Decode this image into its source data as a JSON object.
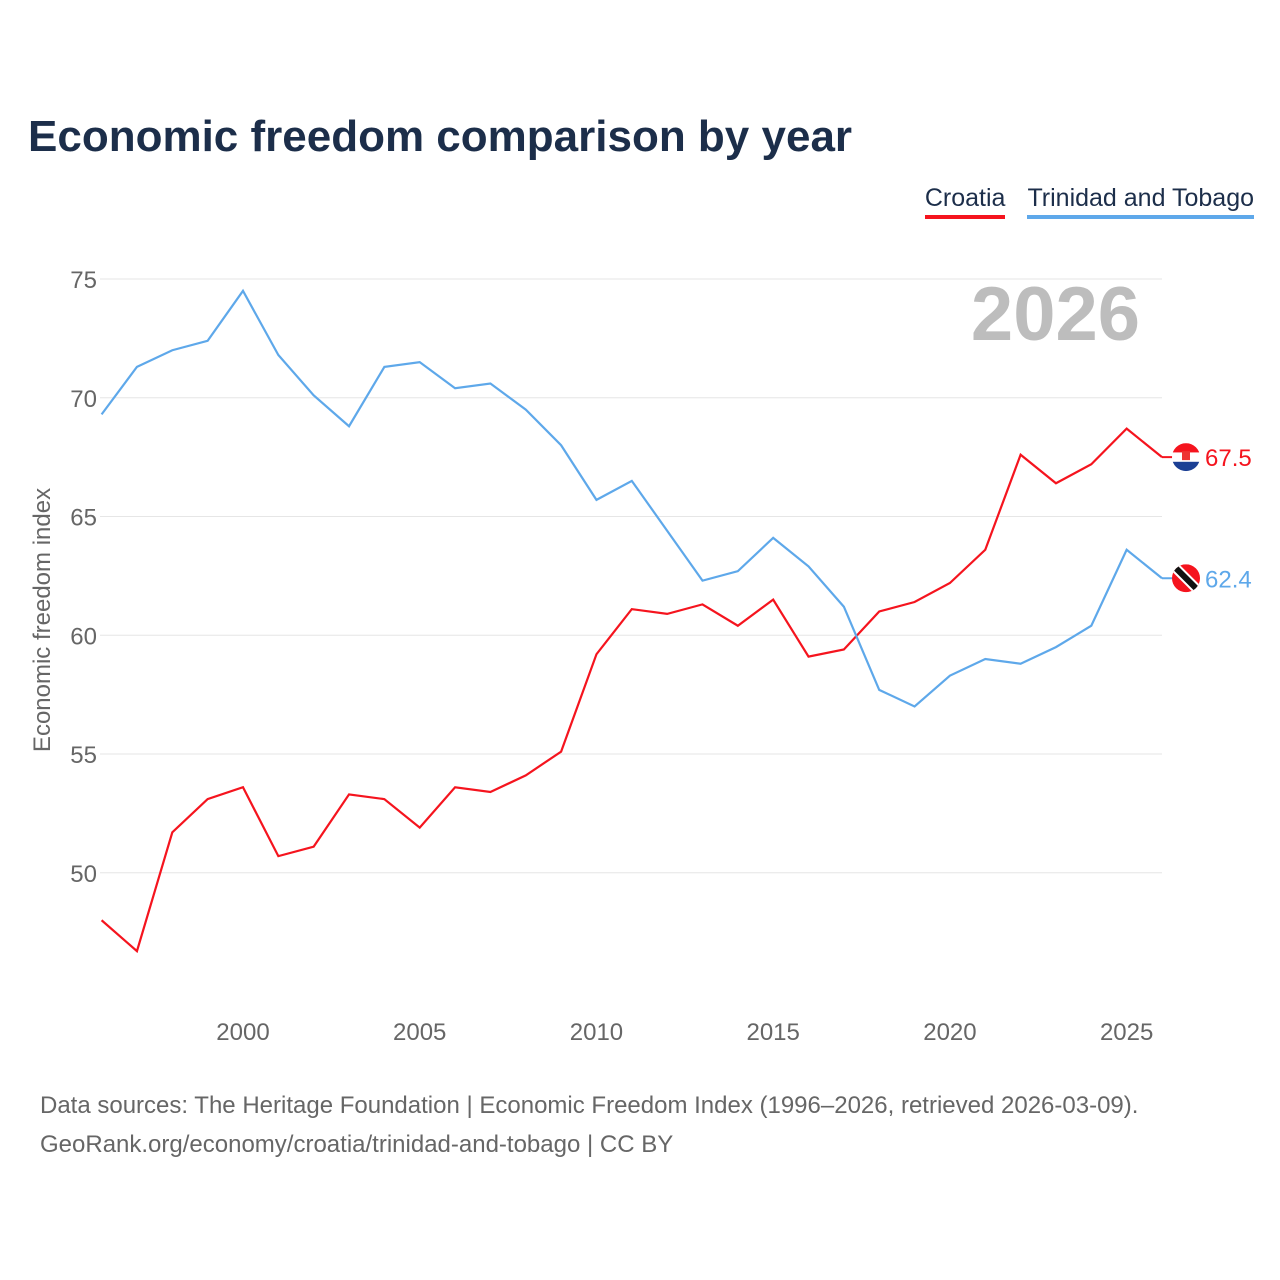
{
  "chart_data": {
    "type": "line",
    "title": "Economic freedom comparison by year",
    "xlabel": "",
    "ylabel": "Economic freedom index",
    "year_watermark": "2026",
    "x": [
      1996,
      1997,
      1998,
      1999,
      2000,
      2001,
      2002,
      2003,
      2004,
      2005,
      2006,
      2007,
      2008,
      2009,
      2010,
      2011,
      2012,
      2013,
      2014,
      2015,
      2016,
      2017,
      2018,
      2019,
      2020,
      2021,
      2022,
      2023,
      2024,
      2025,
      2026
    ],
    "xticks": [
      2000,
      2005,
      2010,
      2015,
      2020,
      2025
    ],
    "yticks": [
      50,
      55,
      60,
      65,
      70,
      75
    ],
    "xlim": [
      1996,
      2026
    ],
    "ylim": [
      45.5,
      75
    ],
    "grid": true,
    "legend_placement": "top-right",
    "series": [
      {
        "name": "Croatia",
        "color": "#f5141e",
        "end_label": "67.5",
        "flag": "croatia-flag",
        "values": [
          48.0,
          46.7,
          51.7,
          53.1,
          53.6,
          50.7,
          51.1,
          53.3,
          53.1,
          51.9,
          53.6,
          53.4,
          54.1,
          55.1,
          59.2,
          61.1,
          60.9,
          61.3,
          60.4,
          61.5,
          59.1,
          59.4,
          61.0,
          61.4,
          62.2,
          63.6,
          67.6,
          66.4,
          67.2,
          68.7,
          67.5
        ]
      },
      {
        "name": "Trinidad and Tobago",
        "color": "#5ea8ea",
        "end_label": "62.4",
        "flag": "trinidad-and-tobago-flag",
        "values": [
          69.3,
          71.3,
          72.0,
          72.4,
          74.5,
          71.8,
          70.1,
          68.8,
          71.3,
          71.5,
          70.4,
          70.6,
          69.5,
          68.0,
          65.7,
          66.5,
          64.4,
          62.3,
          62.7,
          64.1,
          62.9,
          61.2,
          57.7,
          57.0,
          58.3,
          59.0,
          58.8,
          59.5,
          60.4,
          63.6,
          62.4
        ]
      }
    ]
  },
  "footer": {
    "line1": "Data sources: The Heritage Foundation | Economic Freedom Index (1996–2026, retrieved 2026-03-09).",
    "line2": "GeoRank.org/economy/croatia/trinidad-and-tobago | CC BY"
  }
}
